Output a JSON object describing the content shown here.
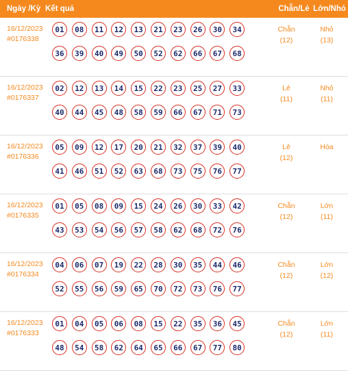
{
  "header": {
    "date_label": "Ngày /Kỳ",
    "result_label": "Kết quả",
    "chanle_label": "Chẵn/Lẻ",
    "lonnho_label": "Lớn/Nhỏ"
  },
  "rows": [
    {
      "date": "16/12/2023",
      "period": "#0176338",
      "balls_top": [
        "01",
        "08",
        "11",
        "12",
        "13",
        "21",
        "23",
        "26",
        "30",
        "34"
      ],
      "balls_bottom": [
        "36",
        "39",
        "40",
        "49",
        "50",
        "52",
        "62",
        "66",
        "67",
        "68"
      ],
      "chanle": "Chẵn",
      "chanle_count": "(12)",
      "lonnho": "Nhỏ",
      "lonnho_count": "(13)"
    },
    {
      "date": "16/12/2023",
      "period": "#0176337",
      "balls_top": [
        "02",
        "12",
        "13",
        "14",
        "15",
        "22",
        "23",
        "25",
        "27",
        "33"
      ],
      "balls_bottom": [
        "40",
        "44",
        "45",
        "48",
        "58",
        "59",
        "66",
        "67",
        "71",
        "73"
      ],
      "chanle": "Lẻ",
      "chanle_count": "(11)",
      "lonnho": "Nhỏ",
      "lonnho_count": "(11)"
    },
    {
      "date": "16/12/2023",
      "period": "#0176336",
      "balls_top": [
        "05",
        "09",
        "12",
        "17",
        "20",
        "21",
        "32",
        "37",
        "39",
        "40"
      ],
      "balls_bottom": [
        "41",
        "46",
        "51",
        "52",
        "63",
        "68",
        "73",
        "75",
        "76",
        "77"
      ],
      "chanle": "Lẻ",
      "chanle_count": "(12)",
      "lonnho": "Hòa",
      "lonnho_count": ""
    },
    {
      "date": "16/12/2023",
      "period": "#0176335",
      "balls_top": [
        "01",
        "05",
        "08",
        "09",
        "15",
        "24",
        "26",
        "30",
        "33",
        "42"
      ],
      "balls_bottom": [
        "43",
        "53",
        "54",
        "56",
        "57",
        "58",
        "62",
        "68",
        "72",
        "76"
      ],
      "chanle": "Chẵn",
      "chanle_count": "(12)",
      "lonnho": "Lớn",
      "lonnho_count": "(11)"
    },
    {
      "date": "16/12/2023",
      "period": "#0176334",
      "balls_top": [
        "04",
        "06",
        "07",
        "19",
        "22",
        "28",
        "30",
        "35",
        "44",
        "46"
      ],
      "balls_bottom": [
        "52",
        "55",
        "56",
        "59",
        "65",
        "70",
        "72",
        "73",
        "76",
        "77"
      ],
      "chanle": "Chẵn",
      "chanle_count": "(12)",
      "lonnho": "Lớn",
      "lonnho_count": "(12)"
    },
    {
      "date": "16/12/2023",
      "period": "#0176333",
      "balls_top": [
        "01",
        "04",
        "05",
        "06",
        "08",
        "15",
        "22",
        "35",
        "36",
        "45"
      ],
      "balls_bottom": [
        "48",
        "54",
        "58",
        "62",
        "64",
        "65",
        "66",
        "67",
        "77",
        "80"
      ],
      "chanle": "Chẵn",
      "chanle_count": "(12)",
      "lonnho": "Lớn",
      "lonnho_count": "(11)"
    }
  ],
  "colors": {
    "header_bg": "#f5891e",
    "accent_text": "#f5891e",
    "ball_border": "#d42a1e",
    "ball_text": "#1b2a6b"
  }
}
